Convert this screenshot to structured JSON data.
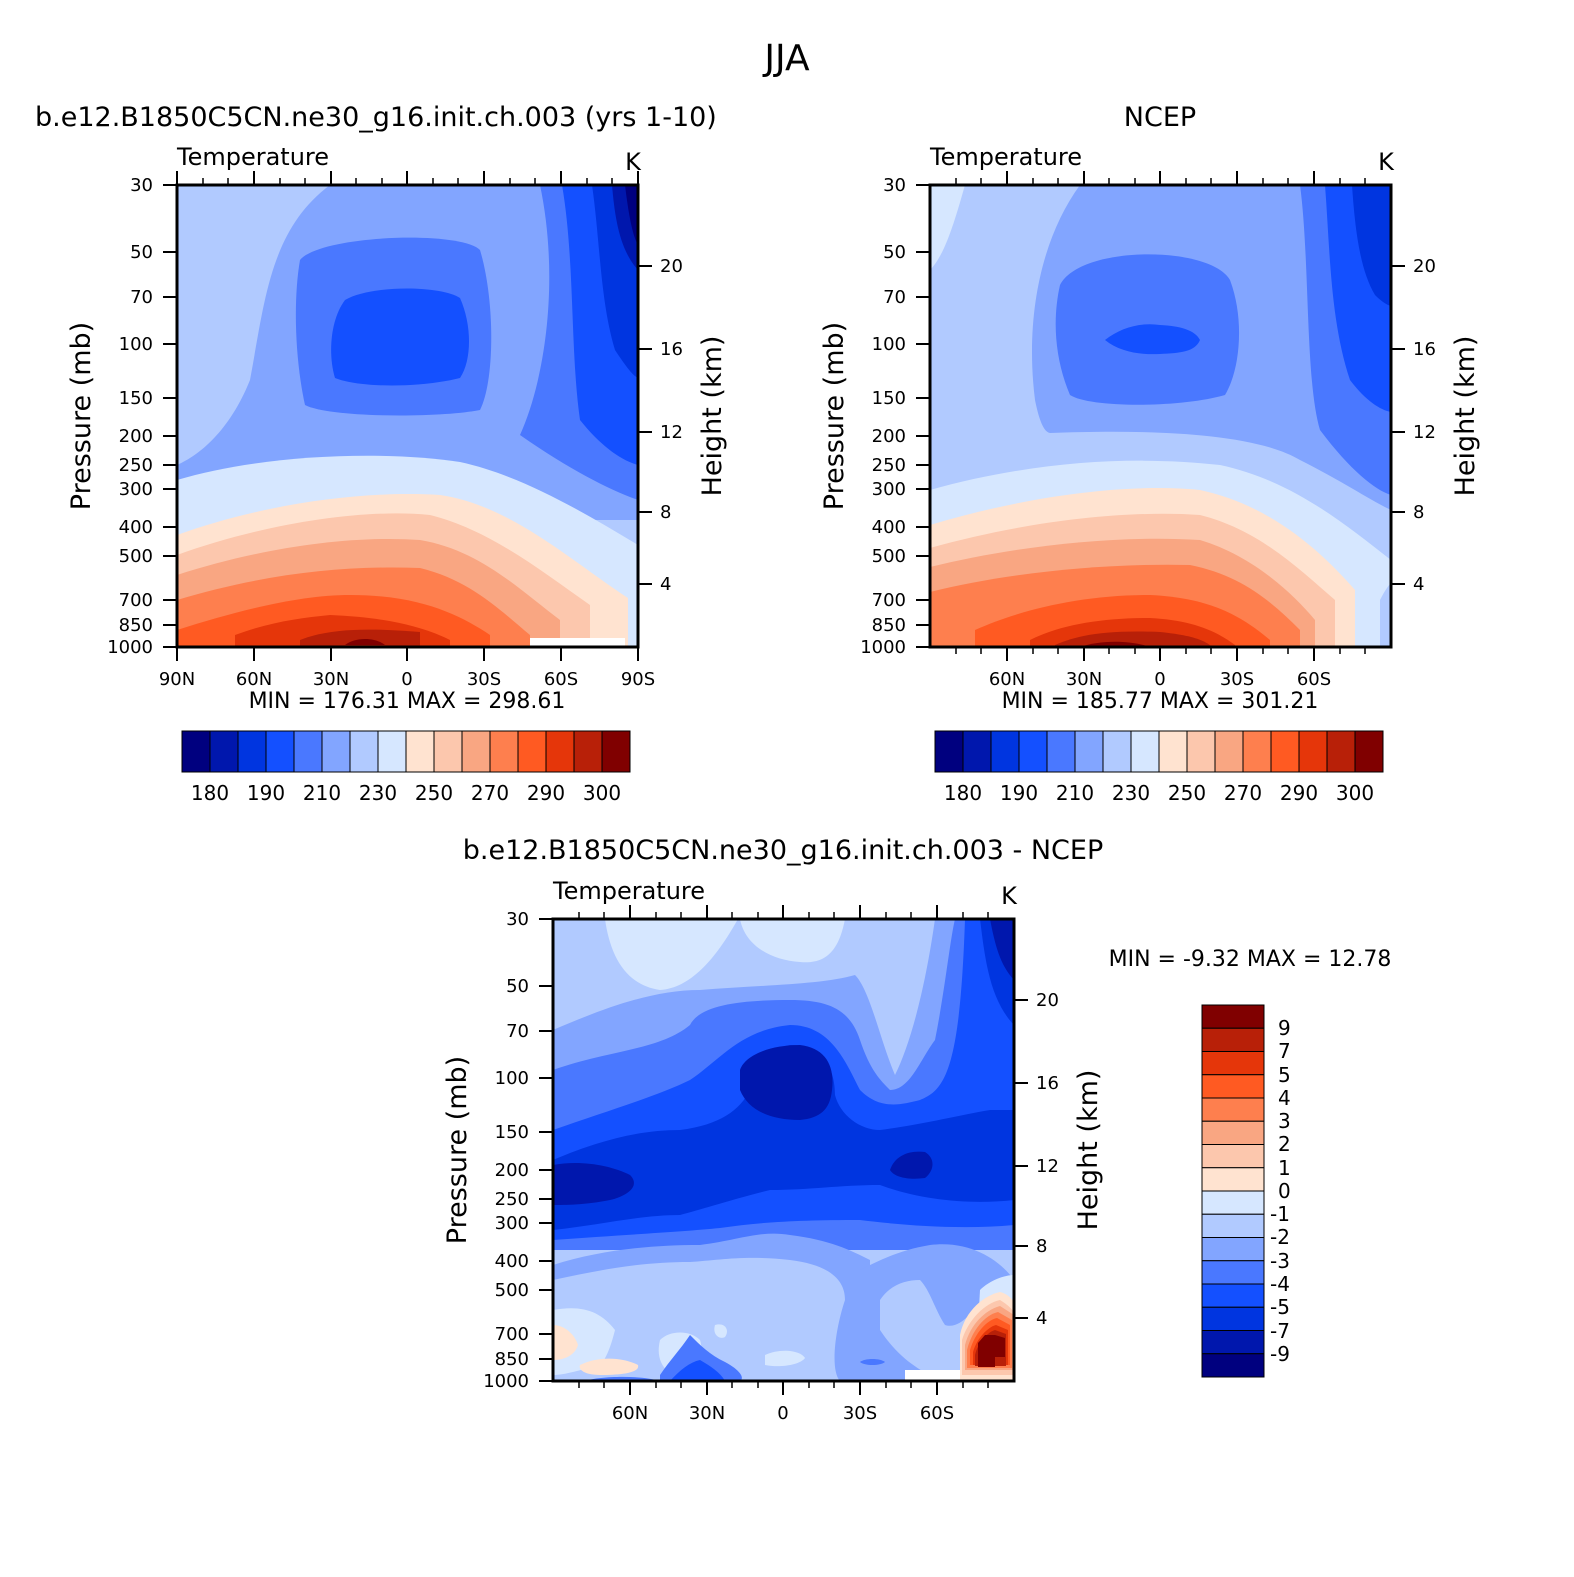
{
  "figure": {
    "title": "JJA",
    "panels": {
      "model": {
        "case_title": "b.e12.B1850C5CN.ne30_g16.init.ch.003 (yrs 1-10)",
        "variable": "Temperature",
        "units": "K",
        "min_max": "MIN = 176.31 MAX = 298.61"
      },
      "obs": {
        "case_title": "NCEP",
        "variable": "Temperature",
        "units": "K",
        "min_max": "MIN = 185.77 MAX = 301.21"
      },
      "diff": {
        "case_title": "b.e12.B1850C5CN.ne30_g16.init.ch.003 - NCEP",
        "variable": "Temperature",
        "units": "K",
        "min_max": "MIN = -9.32 MAX = 12.78"
      }
    }
  },
  "chart_data": [
    {
      "type": "contour",
      "panel": "model",
      "title": "b.e12.B1850C5CN.ne30_g16.init.ch.003 (yrs 1-10)",
      "variable": "Temperature",
      "units": "K",
      "ylabel": "Pressure (mb)",
      "ylabel_right": "Height (km)",
      "xticks": [
        "90N",
        "60N",
        "30N",
        "0",
        "30S",
        "60S",
        "90S"
      ],
      "xtick_values": [
        90,
        60,
        30,
        0,
        -30,
        -60,
        -90
      ],
      "xlim": [
        90,
        -90
      ],
      "pressure_ticks": [
        30,
        50,
        70,
        100,
        150,
        200,
        250,
        300,
        400,
        500,
        700,
        850,
        1000
      ],
      "height_ticks": [
        4,
        8,
        12,
        16,
        20
      ],
      "min": 176.31,
      "max": 298.61,
      "colorbar_labels": [
        "180",
        "190",
        "210",
        "230",
        "250",
        "270",
        "290",
        "300"
      ],
      "colorbar_colors": [
        "#00007f",
        "#0017ad",
        "#0035e0",
        "#1450ff",
        "#4a78ff",
        "#82a5ff",
        "#b1caff",
        "#d6e7ff",
        "#ffe3d0",
        "#fcc7ad",
        "#f9a682",
        "#fe7f4e",
        "#ff5a22",
        "#e5360a",
        "#b82008",
        "#800000"
      ]
    },
    {
      "type": "contour",
      "panel": "obs",
      "title": "NCEP",
      "variable": "Temperature",
      "units": "K",
      "ylabel": "Pressure (mb)",
      "ylabel_right": "Height (km)",
      "xticks": [
        "60N",
        "30N",
        "0",
        "30S",
        "60S"
      ],
      "xtick_values": [
        60,
        30,
        0,
        -30,
        -60
      ],
      "xlim": [
        90,
        -90
      ],
      "pressure_ticks": [
        30,
        50,
        70,
        100,
        150,
        200,
        250,
        300,
        400,
        500,
        700,
        850,
        1000
      ],
      "height_ticks": [
        4,
        8,
        12,
        16,
        20
      ],
      "min": 185.77,
      "max": 301.21,
      "colorbar_labels": [
        "180",
        "190",
        "210",
        "230",
        "250",
        "270",
        "290",
        "300"
      ],
      "colorbar_colors": [
        "#00007f",
        "#0017ad",
        "#0035e0",
        "#1450ff",
        "#4a78ff",
        "#82a5ff",
        "#b1caff",
        "#d6e7ff",
        "#ffe3d0",
        "#fcc7ad",
        "#f9a682",
        "#fe7f4e",
        "#ff5a22",
        "#e5360a",
        "#b82008",
        "#800000"
      ]
    },
    {
      "type": "contour",
      "panel": "diff",
      "title": "b.e12.B1850C5CN.ne30_g16.init.ch.003 - NCEP",
      "variable": "Temperature",
      "units": "K",
      "ylabel": "Pressure (mb)",
      "ylabel_right": "Height (km)",
      "xticks": [
        "60N",
        "30N",
        "0",
        "30S",
        "60S"
      ],
      "xtick_values": [
        60,
        30,
        0,
        -30,
        -60
      ],
      "xlim": [
        90,
        -90
      ],
      "pressure_ticks": [
        30,
        50,
        70,
        100,
        150,
        200,
        250,
        300,
        400,
        500,
        700,
        850,
        1000
      ],
      "height_ticks": [
        4,
        8,
        12,
        16,
        20
      ],
      "min": -9.32,
      "max": 12.78,
      "colorbar_labels": [
        "9",
        "7",
        "5",
        "4",
        "3",
        "2",
        "1",
        "0",
        "-1",
        "-2",
        "-3",
        "-4",
        "-5",
        "-7",
        "-9"
      ],
      "colorbar_colors": [
        "#800000",
        "#b82008",
        "#e5360a",
        "#ff5a22",
        "#fe7f4e",
        "#f9a682",
        "#fcc7ad",
        "#ffe3d0",
        "#d6e7ff",
        "#b1caff",
        "#82a5ff",
        "#4a78ff",
        "#1450ff",
        "#0035e0",
        "#0017ad",
        "#00007f"
      ]
    }
  ]
}
